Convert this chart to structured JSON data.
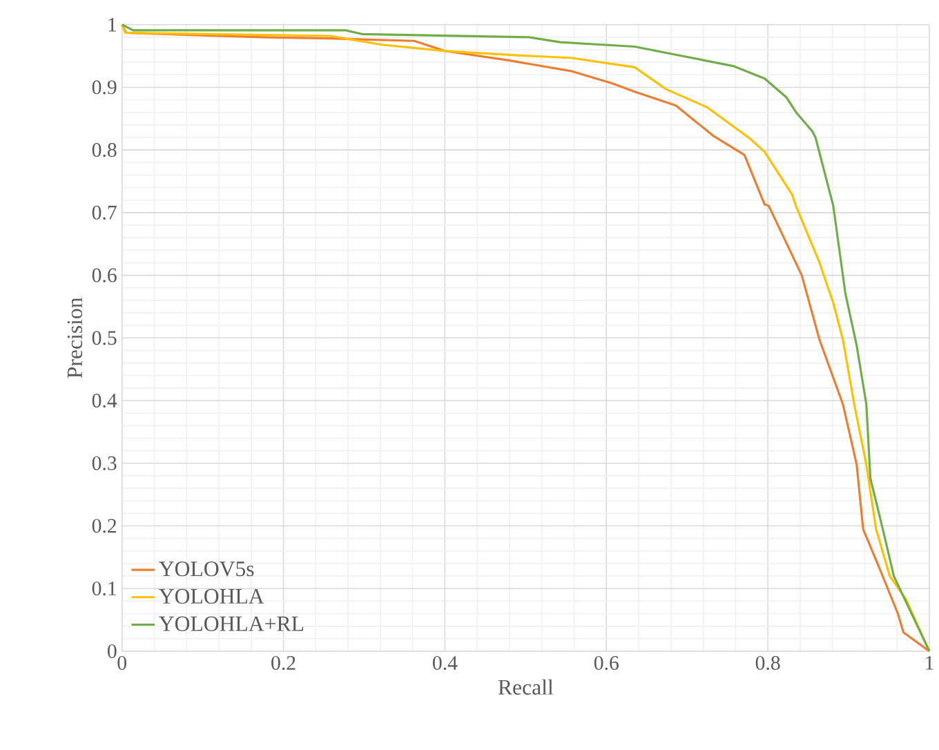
{
  "chart_data": {
    "type": "line",
    "xlabel": "Recall",
    "ylabel": "Precision",
    "xlim": [
      0,
      1
    ],
    "ylim": [
      0,
      1
    ],
    "xticks": [
      0,
      0.2,
      0.4,
      0.6,
      0.8,
      1
    ],
    "yticks": [
      0,
      0.1,
      0.2,
      0.3,
      0.4,
      0.5,
      0.6,
      0.7,
      0.8,
      0.9,
      1
    ],
    "grid": true,
    "legend": "bottom left",
    "marker": "none",
    "line_style": "solid",
    "series": [
      {
        "name": "YOLOV5s",
        "color": "#ed7d31",
        "x": [
          0,
          0.005,
          0.173,
          0.258,
          0.362,
          0.4,
          0.479,
          0.556,
          0.608,
          0.635,
          0.686,
          0.732,
          0.771,
          0.796,
          0.801,
          0.842,
          0.864,
          0.893,
          0.91,
          0.918,
          0.939,
          0.961,
          0.968,
          1
        ],
        "values": [
          1,
          0.987,
          0.98,
          0.978,
          0.974,
          0.958,
          0.943,
          0.926,
          0.906,
          0.893,
          0.871,
          0.823,
          0.792,
          0.713,
          0.711,
          0.6,
          0.497,
          0.394,
          0.298,
          0.195,
          0.13,
          0.06,
          0.03,
          0
        ]
      },
      {
        "name": "YOLOHLA",
        "color": "#ffc000",
        "x": [
          0,
          0.004,
          0.258,
          0.322,
          0.4,
          0.49,
          0.556,
          0.635,
          0.674,
          0.725,
          0.778,
          0.796,
          0.83,
          0.835,
          0.864,
          0.881,
          0.893,
          0.907,
          0.922,
          0.934,
          0.951,
          0.971,
          1
        ],
        "values": [
          1,
          0.987,
          0.982,
          0.968,
          0.958,
          0.951,
          0.947,
          0.932,
          0.897,
          0.868,
          0.818,
          0.797,
          0.729,
          0.71,
          0.62,
          0.556,
          0.497,
          0.394,
          0.298,
          0.195,
          0.12,
          0.083,
          0
        ]
      },
      {
        "name": "YOLOHLA+RL",
        "color": "#70ad47",
        "x": [
          0,
          0.014,
          0.277,
          0.297,
          0.504,
          0.543,
          0.635,
          0.686,
          0.757,
          0.796,
          0.823,
          0.835,
          0.855,
          0.859,
          0.881,
          0.896,
          0.91,
          0.922,
          0.927,
          0.944,
          0.956,
          1
        ],
        "values": [
          1,
          0.991,
          0.991,
          0.985,
          0.98,
          0.972,
          0.965,
          0.952,
          0.934,
          0.914,
          0.884,
          0.86,
          0.83,
          0.82,
          0.711,
          0.571,
          0.488,
          0.394,
          0.276,
          0.186,
          0.12,
          0
        ]
      }
    ]
  }
}
